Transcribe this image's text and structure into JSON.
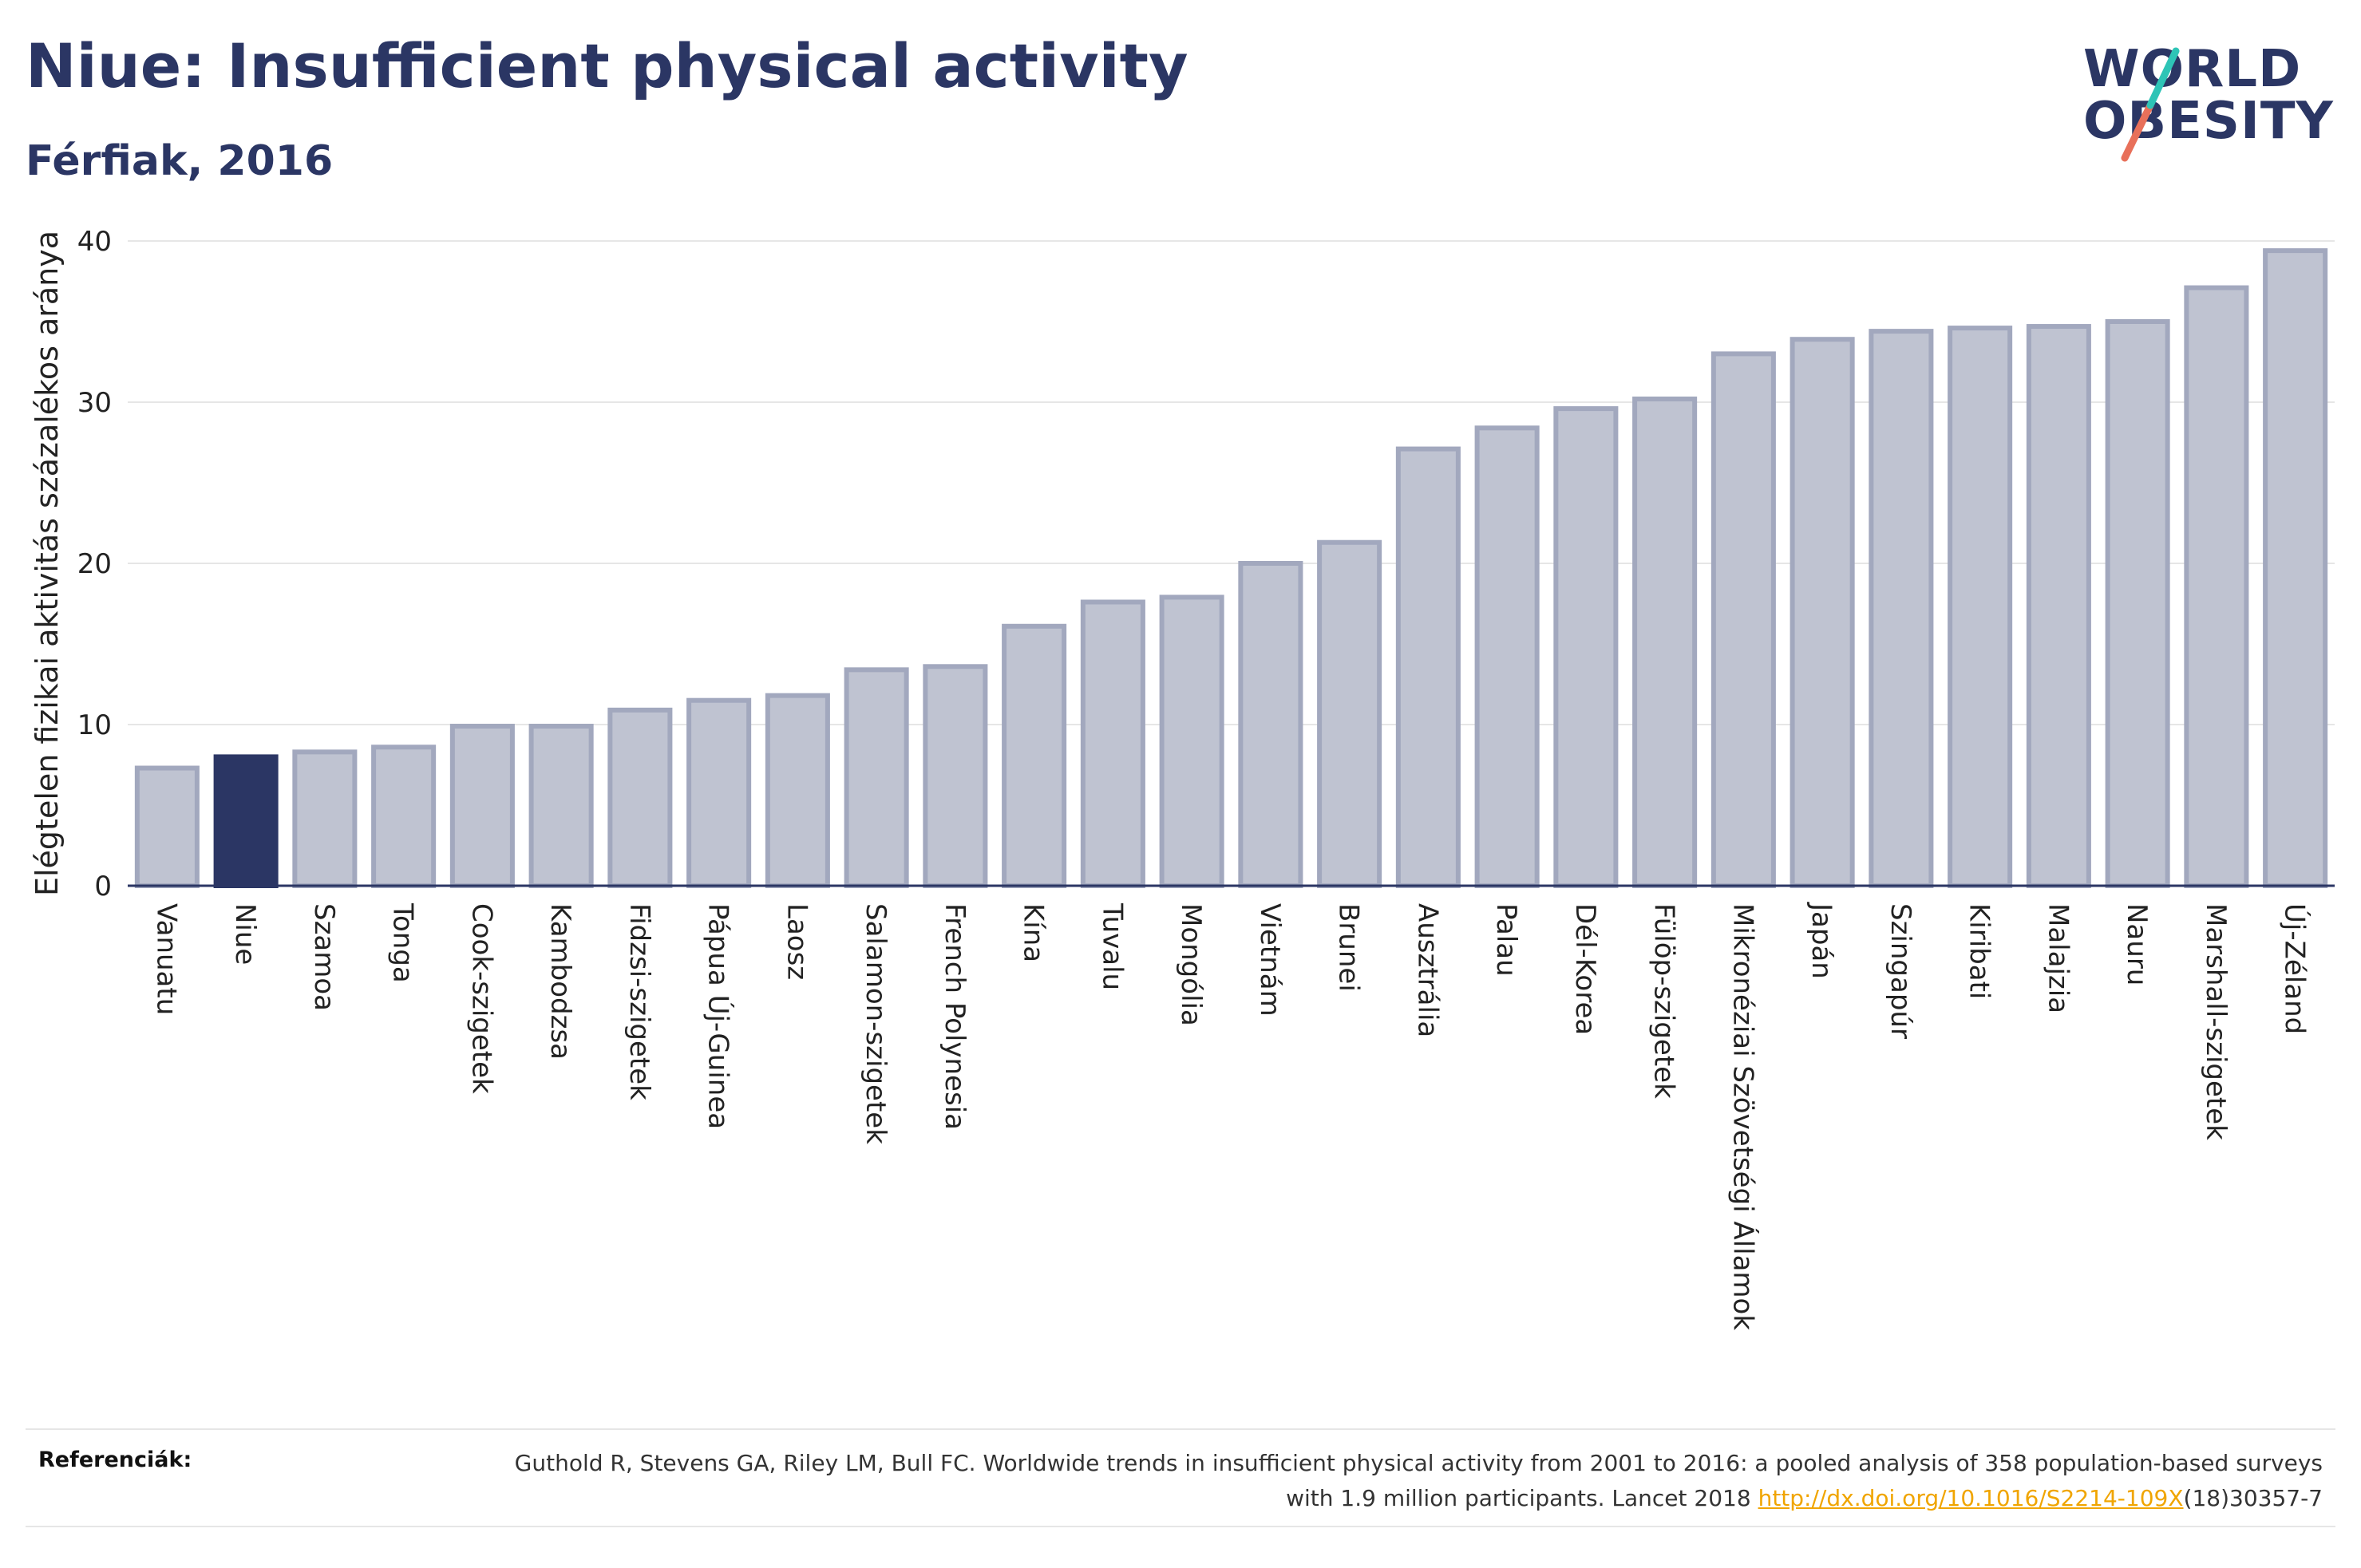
{
  "header": {
    "title": "Niue: Insufficient physical activity",
    "subtitle": "Férfiak, 2016"
  },
  "logo": {
    "line1": "WORLD",
    "line2": "OBESITY"
  },
  "colors": {
    "bar": "#bfc3d1",
    "bar_stroke": "#a2a8be",
    "highlight": "#2b3664",
    "grid": "#e6e6e6",
    "axis": "#2b3664",
    "logo_teal": "#2ec4b6",
    "logo_coral": "#e8705a"
  },
  "chart_data": {
    "type": "bar",
    "title": "Niue: Insufficient physical activity",
    "subtitle": "Férfiak, 2016",
    "xlabel": "",
    "ylabel": "Elégtelen fizikai aktivitás százalékos aránya",
    "ylim": [
      0,
      40
    ],
    "yticks": [
      0,
      10,
      20,
      30,
      40
    ],
    "grid": true,
    "highlight": "Niue",
    "categories": [
      "Vanuatu",
      "Niue",
      "Szamoa",
      "Tonga",
      "Cook-szigetek",
      "Kambodzsa",
      "Fidzsi-szigetek",
      "Pápua Új-Guinea",
      "Laosz",
      "Salamon-szigetek",
      "French Polynesia",
      "Kína",
      "Tuvalu",
      "Mongólia",
      "Vietnám",
      "Brunei",
      "Ausztrália",
      "Palau",
      "Dél-Korea",
      "Fülöp-szigetek",
      "Mikronéziai Szövetségi Államok",
      "Japán",
      "Szingapúr",
      "Kiribati",
      "Malajzia",
      "Nauru",
      "Marshall-szigetek",
      "Új-Zéland"
    ],
    "values": [
      7.3,
      8.0,
      8.3,
      8.6,
      9.9,
      9.9,
      10.9,
      11.5,
      11.8,
      13.4,
      13.6,
      16.1,
      17.6,
      17.9,
      20.0,
      21.3,
      27.1,
      28.4,
      29.6,
      30.2,
      33.0,
      33.9,
      34.4,
      34.6,
      34.7,
      35.0,
      37.1,
      39.4
    ]
  },
  "references": {
    "label": "Referenciák:",
    "text_before": "Guthold R, Stevens GA, Riley LM, Bull FC. Worldwide trends in insufficient physical activity from 2001 to 2016: a pooled analysis of 358 population-based surveys with 1.9 million participants. Lancet 2018 ",
    "link": "http://dx.doi.org/10.1016/S2214-109X",
    "text_after": "(18)30357-7"
  }
}
